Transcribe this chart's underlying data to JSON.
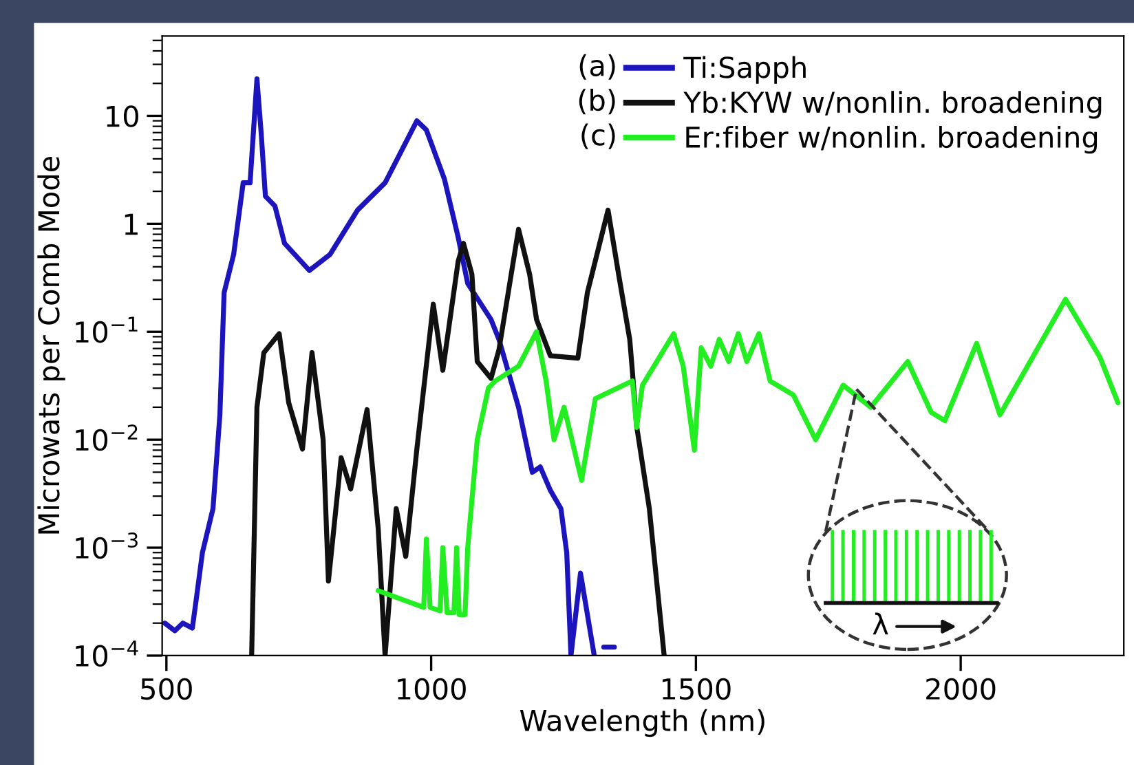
{
  "chart_data": {
    "type": "line",
    "xlabel": "Wavelength (nm)",
    "ylabel": "Microwats per Comb Mode",
    "log": "y",
    "xlim": [
      492,
      2308
    ],
    "ylim": [
      0.0001,
      55
    ],
    "xticks": [
      500,
      1000,
      1500,
      2000
    ],
    "yticks": [
      {
        "value": 0.0001,
        "label": "10$^{−4}$"
      },
      {
        "value": 0.001,
        "label": "10$^{−3}$"
      },
      {
        "value": 0.01,
        "label": "10$^{−2}$"
      },
      {
        "value": 0.1,
        "label": "10$^{−1}$"
      },
      1,
      10
    ],
    "grid": false,
    "legend": "top right",
    "line_style": "solid",
    "marker": "none",
    "annotations": [
      "(a)",
      "(b)",
      "(c)",
      "λ"
    ],
    "series": [
      {
        "name": "Ti:Sapph",
        "color": "#1c14bc",
        "x": [
          497,
          516,
          531,
          549,
          557,
          568,
          588,
          601,
          609,
          627,
          645,
          658,
          671,
          679,
          687,
          705,
          723,
          770,
          809,
          861,
          913,
          973,
          991,
          1025,
          1051,
          1069,
          1113,
          1128,
          1165,
          1191,
          1206,
          1225,
          1245,
          1256,
          1264,
          1282,
          1308,
          1318,
          1326,
          1346
        ],
        "values": [
          0.0002,
          0.00017,
          0.0002,
          0.00018,
          0.00035,
          0.0009,
          0.0023,
          0.017,
          0.23,
          0.52,
          2.4,
          2.4,
          22,
          6.9,
          1.8,
          1.46,
          0.66,
          0.37,
          0.52,
          1.34,
          2.4,
          9.0,
          7.4,
          2.6,
          0.75,
          0.28,
          0.13,
          0.085,
          0.02,
          0.005,
          0.0056,
          0.0034,
          0.0023,
          0.0009,
          0.0001,
          0.00058,
          0.0001,
          null,
          0.00012,
          0.00012
        ]
      },
      {
        "name": "Yb:KYW w/nonlin. broadening",
        "color": "#111111",
        "x": [
          661,
          671,
          684,
          713,
          731,
          757,
          775,
          796,
          806,
          830,
          848,
          879,
          900,
          913,
          934,
          952,
          973,
          1004,
          1022,
          1051,
          1061,
          1077,
          1087,
          1113,
          1128,
          1165,
          1186,
          1199,
          1225,
          1277,
          1295,
          1334,
          1354,
          1375,
          1380,
          1388,
          1412,
          1440
        ],
        "values": [
          0.0001,
          0.02,
          0.064,
          0.096,
          0.022,
          0.0082,
          0.064,
          0.01,
          0.00049,
          0.0068,
          0.0035,
          0.019,
          0.0015,
          0.0001,
          0.0023,
          0.00083,
          0.0082,
          0.18,
          0.044,
          0.45,
          0.66,
          0.34,
          0.053,
          0.037,
          0.068,
          0.89,
          0.34,
          0.13,
          0.06,
          0.057,
          0.23,
          1.34,
          0.34,
          0.085,
          0.043,
          0.0134,
          0.0023,
          0.0001
        ]
      },
      {
        "name": "Er:fiber w/nonlin. broadening",
        "color": "#22ee22",
        "x": [
          900,
          986,
          991,
          998,
          1017,
          1022,
          1030,
          1043,
          1048,
          1053,
          1064,
          1069,
          1087,
          1108,
          1121,
          1165,
          1199,
          1217,
          1232,
          1251,
          1284,
          1310,
          1380,
          1388,
          1399,
          1458,
          1476,
          1497,
          1510,
          1528,
          1544,
          1562,
          1580,
          1596,
          1619,
          1640,
          1684,
          1726,
          1778,
          1830,
          1900,
          1944,
          1970,
          2030,
          2074,
          2198,
          2263,
          2297
        ],
        "values": [
          0.0004,
          0.00028,
          0.0012,
          0.00028,
          0.00026,
          0.001,
          0.00025,
          0.00025,
          0.001,
          0.00024,
          0.00024,
          0.001,
          0.01,
          0.03,
          0.035,
          0.048,
          0.1,
          0.035,
          0.01,
          0.02,
          0.0042,
          0.024,
          0.035,
          0.013,
          0.032,
          0.096,
          0.048,
          0.008,
          0.071,
          0.048,
          0.085,
          0.053,
          0.096,
          0.053,
          0.096,
          0.035,
          0.026,
          0.01,
          0.032,
          0.02,
          0.053,
          0.018,
          0.015,
          0.078,
          0.017,
          0.2,
          0.058,
          0.022
        ]
      }
    ]
  }
}
